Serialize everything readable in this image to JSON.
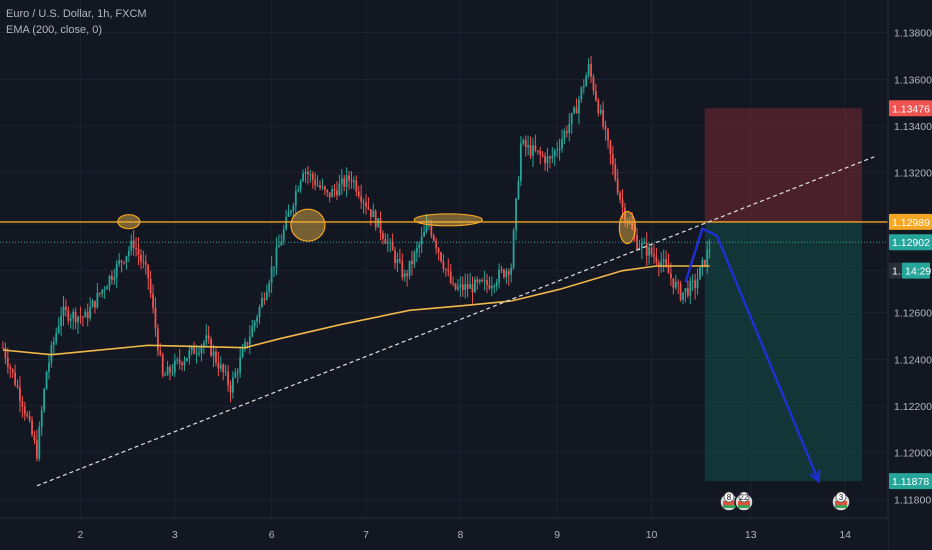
{
  "legend": {
    "symbol": "Euro / U.S. Dollar, 1h, FXCM",
    "indicator": "EMA (200, close, 0)"
  },
  "colors": {
    "background": "#131722",
    "grid": "#1e2230",
    "up": "#26a69a",
    "down": "#ef5350",
    "ema": "#f0b849",
    "resistance": "#f5a623",
    "ellipse_fill": "rgba(240,184,73,0.45)",
    "stop_zone": "rgba(120,40,50,0.55)",
    "target_zone": "rgba(18,80,72,0.55)",
    "projection_arrow": "#1f2fd6",
    "trendline": "#e0e0e0",
    "current_price_line": "#26a69a"
  },
  "price_axis": {
    "ticks": [
      "1.13800",
      "1.13600",
      "1.13400",
      "1.13200",
      "1.12600",
      "1.12400",
      "1.12200",
      "1.12000",
      "1.11800"
    ],
    "tags": [
      {
        "label": "1.13476",
        "value": 1.13476,
        "color": "#ef5350"
      },
      {
        "label": "1.12989",
        "value": 1.12989,
        "color": "#f5a623"
      },
      {
        "label": "1.12902",
        "value": 1.12902,
        "color": "#26a69a"
      },
      {
        "label": "1.1",
        "value": 1.1278,
        "color": "#2a2e39"
      },
      {
        "label": "14:29",
        "value": 1.1278,
        "color": "#26a69a"
      },
      {
        "label": "1.11878",
        "value": 1.11878,
        "color": "#26a69a"
      }
    ]
  },
  "time_axis": {
    "ticks": [
      "2",
      "3",
      "6",
      "7",
      "8",
      "9",
      "10",
      "13",
      "14"
    ]
  },
  "event_markers": [
    "8",
    "22",
    "3"
  ],
  "chart_data": {
    "type": "candlestick",
    "title": "Euro / U.S. Dollar, 1h, FXCM",
    "indicator": "EMA (200, close, 0)",
    "ylim": [
      1.1172,
      1.1394
    ],
    "x_ticks": [
      "2",
      "3",
      "6",
      "7",
      "8",
      "9",
      "10",
      "13",
      "14"
    ],
    "price_path_anchors": [
      {
        "bar": 0,
        "price": 1.1245
      },
      {
        "bar": 8,
        "price": 1.1222
      },
      {
        "bar": 14,
        "price": 1.12
      },
      {
        "bar": 18,
        "price": 1.1235
      },
      {
        "bar": 24,
        "price": 1.126
      },
      {
        "bar": 34,
        "price": 1.1258
      },
      {
        "bar": 44,
        "price": 1.1275
      },
      {
        "bar": 54,
        "price": 1.129
      },
      {
        "bar": 60,
        "price": 1.1275
      },
      {
        "bar": 66,
        "price": 1.1232
      },
      {
        "bar": 74,
        "price": 1.124
      },
      {
        "bar": 84,
        "price": 1.1248
      },
      {
        "bar": 94,
        "price": 1.1228
      },
      {
        "bar": 106,
        "price": 1.1262
      },
      {
        "bar": 116,
        "price": 1.1295
      },
      {
        "bar": 124,
        "price": 1.1322
      },
      {
        "bar": 134,
        "price": 1.131
      },
      {
        "bar": 144,
        "price": 1.1318
      },
      {
        "bar": 158,
        "price": 1.1292
      },
      {
        "bar": 166,
        "price": 1.1275
      },
      {
        "bar": 176,
        "price": 1.1298
      },
      {
        "bar": 186,
        "price": 1.127
      },
      {
        "bar": 200,
        "price": 1.1272
      },
      {
        "bar": 210,
        "price": 1.128
      },
      {
        "bar": 214,
        "price": 1.1332
      },
      {
        "bar": 226,
        "price": 1.1325
      },
      {
        "bar": 236,
        "price": 1.1345
      },
      {
        "bar": 242,
        "price": 1.1365
      },
      {
        "bar": 248,
        "price": 1.134
      },
      {
        "bar": 256,
        "price": 1.1305
      },
      {
        "bar": 262,
        "price": 1.129
      },
      {
        "bar": 272,
        "price": 1.1282
      },
      {
        "bar": 280,
        "price": 1.1268
      },
      {
        "bar": 286,
        "price": 1.1272
      },
      {
        "bar": 292,
        "price": 1.1288
      }
    ],
    "ema_points": [
      {
        "bar": 0,
        "price": 1.1244
      },
      {
        "bar": 20,
        "price": 1.1242
      },
      {
        "bar": 60,
        "price": 1.1246
      },
      {
        "bar": 100,
        "price": 1.1245
      },
      {
        "bar": 115,
        "price": 1.1249
      },
      {
        "bar": 140,
        "price": 1.1255
      },
      {
        "bar": 168,
        "price": 1.1261
      },
      {
        "bar": 190,
        "price": 1.1263
      },
      {
        "bar": 210,
        "price": 1.1265
      },
      {
        "bar": 230,
        "price": 1.127
      },
      {
        "bar": 256,
        "price": 1.1278
      },
      {
        "bar": 270,
        "price": 1.128
      },
      {
        "bar": 292,
        "price": 1.128
      }
    ],
    "resistance_level": 1.12989,
    "current_price": 1.12902,
    "stop_level": 1.13476,
    "target_level": 1.11878,
    "trendline": {
      "start": {
        "bar": 14,
        "price": 1.11858
      },
      "end": {
        "bar": 360,
        "price": 1.13268
      }
    },
    "ellipse_marks": [
      {
        "bar": 52,
        "price": 1.1299
      },
      {
        "bar": 126,
        "price": 1.12975
      },
      {
        "bar": 184,
        "price": 1.12998
      },
      {
        "bar": 258,
        "price": 1.12965
      }
    ],
    "projection": [
      {
        "bar": 282,
        "price": 1.1273
      },
      {
        "bar": 289,
        "price": 1.1296
      },
      {
        "bar": 295,
        "price": 1.1293
      },
      {
        "bar": 337,
        "price": 1.11878
      }
    ],
    "zone_start_bar": 290,
    "zone_end_bar": 355
  }
}
